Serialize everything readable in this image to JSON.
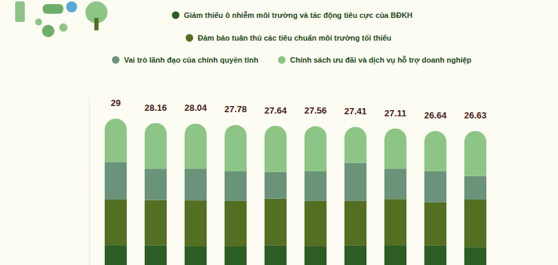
{
  "chart_data": {
    "type": "bar",
    "stacked": true,
    "legend": "top",
    "tick_labels": false,
    "grid": false,
    "categories": [
      null,
      null,
      null,
      null,
      null,
      null,
      null,
      null,
      null,
      null
    ],
    "ylim": [
      1,
      33
    ],
    "yticks": [],
    "totals": [
      29,
      28.16,
      28.04,
      27.78,
      27.64,
      27.56,
      27.41,
      27.11,
      26.64,
      26.63
    ],
    "series": [
      {
        "name": "Giảm thiểu ô nhiễm môi trường và tác động tiêu cực của BĐKH",
        "color": "#2c5d24",
        "values": [
          4.8,
          4.7,
          4.55,
          4.55,
          4.7,
          4.55,
          4.7,
          4.8,
          4.7,
          4.4
        ]
      },
      {
        "name": "Đảm bảo tuân thủ các tiêu chuẩn môi trường tối thiểu",
        "color": "#536f22",
        "values": [
          8.7,
          8.7,
          8.8,
          8.7,
          8.95,
          8.7,
          8.55,
          8.8,
          8.3,
          9.1
        ]
      },
      {
        "name": "Vai trò lãnh đạo của chính quyền tỉnh",
        "color": "#6b937a",
        "values": [
          7.2,
          6.0,
          6.05,
          5.65,
          5.15,
          5.65,
          7.25,
          5.8,
          5.9,
          4.5
        ]
      },
      {
        "name": "Chính sách ưu đãi và dịch vụ hỗ trợ doanh nghiệp",
        "color": "#8cc585",
        "values": [
          8.3,
          8.76,
          8.64,
          8.88,
          8.84,
          8.66,
          6.91,
          7.71,
          7.74,
          8.63
        ]
      }
    ]
  }
}
